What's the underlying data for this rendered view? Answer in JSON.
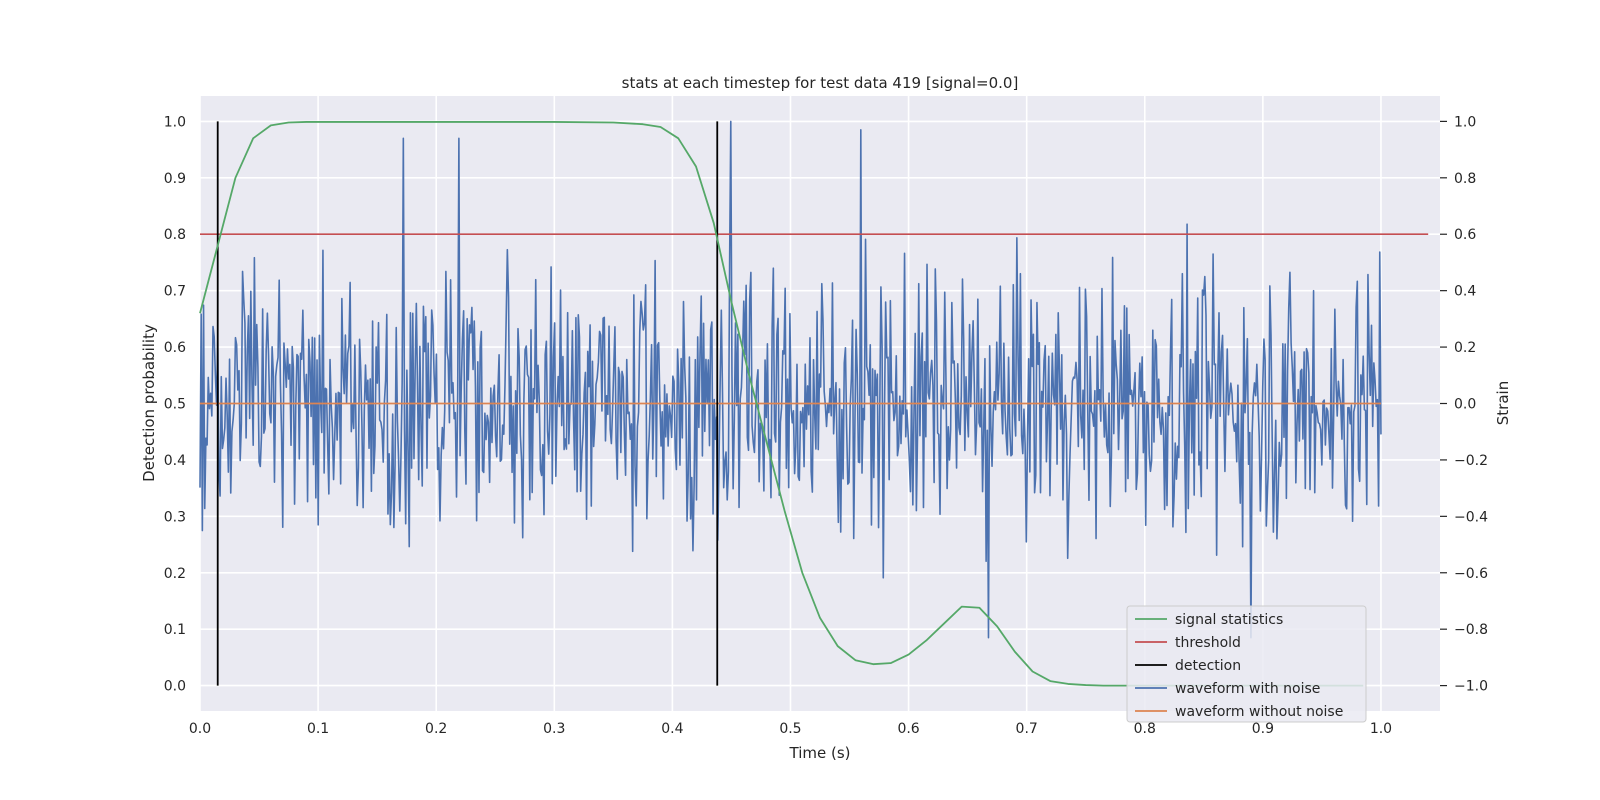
{
  "chart_data": {
    "type": "line",
    "title": "stats at each timestep for test data 419 [signal=0.0]",
    "xlabel": "Time (s)",
    "ylabel": "Detection probability",
    "y2label": "Strain",
    "xlim": [
      0.0,
      1.05
    ],
    "ylim": [
      -0.045,
      1.045
    ],
    "y2lim": [
      -1.09,
      1.09
    ],
    "grid": true,
    "legend_position": "lower-right",
    "xticks": [
      0.0,
      0.1,
      0.2,
      0.3,
      0.4,
      0.5,
      0.6,
      0.7,
      0.8,
      0.9,
      1.0
    ],
    "xtick_labels": [
      "0.0",
      "0.1",
      "0.2",
      "0.3",
      "0.4",
      "0.5",
      "0.6",
      "0.7",
      "0.8",
      "0.9",
      "1.0"
    ],
    "yticks": [
      0.0,
      0.1,
      0.2,
      0.3,
      0.4,
      0.5,
      0.6,
      0.7,
      0.8,
      0.9,
      1.0
    ],
    "ytick_labels": [
      "0.0",
      "0.1",
      "0.2",
      "0.3",
      "0.4",
      "0.5",
      "0.6",
      "0.7",
      "0.8",
      "0.9",
      "1.0"
    ],
    "y2ticks": [
      -1.0,
      -0.8,
      -0.6,
      -0.4,
      -0.2,
      0.0,
      0.2,
      0.4,
      0.6,
      0.8,
      1.0
    ],
    "y2tick_labels": [
      "−1.0",
      "−0.8",
      "−0.6",
      "−0.4",
      "−0.2",
      "0.0",
      "0.2",
      "0.4",
      "0.6",
      "0.8",
      "1.0"
    ],
    "series": [
      {
        "name": "signal statistics",
        "axis": "left",
        "color": "#55a868",
        "x": [
          0.0,
          0.015,
          0.03,
          0.045,
          0.06,
          0.075,
          0.09,
          0.12,
          0.2,
          0.3,
          0.35,
          0.375,
          0.39,
          0.405,
          0.42,
          0.435,
          0.45,
          0.465,
          0.48,
          0.495,
          0.51,
          0.525,
          0.54,
          0.555,
          0.57,
          0.585,
          0.6,
          0.615,
          0.63,
          0.645,
          0.66,
          0.675,
          0.69,
          0.705,
          0.72,
          0.735,
          0.75,
          0.765,
          0.78,
          0.8,
          0.9,
          0.985
        ],
        "y": [
          0.66,
          0.78,
          0.9,
          0.97,
          0.993,
          0.998,
          0.999,
          0.999,
          0.999,
          0.999,
          0.998,
          0.995,
          0.99,
          0.97,
          0.92,
          0.82,
          0.68,
          0.55,
          0.43,
          0.31,
          0.2,
          0.12,
          0.07,
          0.045,
          0.038,
          0.04,
          0.055,
          0.08,
          0.11,
          0.14,
          0.138,
          0.105,
          0.06,
          0.025,
          0.008,
          0.003,
          0.001,
          0.0,
          0.0,
          0.0,
          0.0,
          0.0
        ]
      },
      {
        "name": "threshold",
        "axis": "left",
        "color": "#c44e52",
        "x": [
          0.0,
          1.04
        ],
        "y": [
          0.8,
          0.8
        ]
      },
      {
        "name": "detection",
        "axis": "left",
        "color": "#000000",
        "x_positions": [
          0.015,
          0.438
        ],
        "y_range": [
          0.0,
          1.0
        ]
      },
      {
        "name": "waveform with noise",
        "axis": "right",
        "color": "#4c72b0",
        "generated": "noise",
        "n_points": 1000,
        "x_range": [
          0.0,
          1.0
        ],
        "std": 0.22,
        "peaks": [
          {
            "x": 0.172,
            "y": 0.94
          },
          {
            "x": 0.219,
            "y": 0.94
          },
          {
            "x": 0.449,
            "y": 1.0
          },
          {
            "x": 0.56,
            "y": 0.97
          },
          {
            "x": 0.668,
            "y": -0.83
          },
          {
            "x": 0.89,
            "y": -0.83
          }
        ]
      },
      {
        "name": "waveform without noise",
        "axis": "right",
        "color": "#dd8452",
        "x": [
          0.0,
          1.0
        ],
        "y": [
          0.0,
          0.0
        ]
      }
    ]
  }
}
